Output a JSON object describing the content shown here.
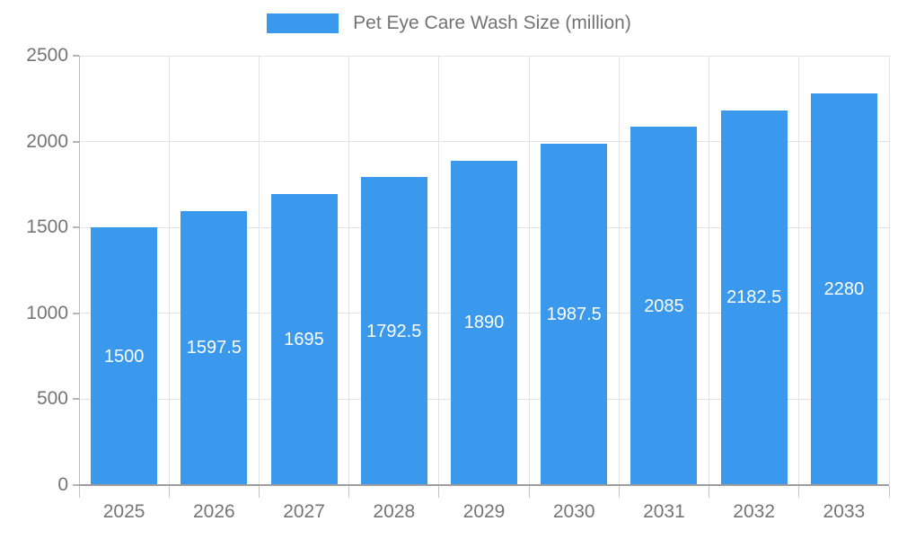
{
  "legend": {
    "label": "Pet Eye Care Wash Size (million)",
    "swatch_color": "#3a99ec"
  },
  "chart_data": {
    "type": "bar",
    "title": "",
    "xlabel": "",
    "ylabel": "",
    "categories": [
      "2025",
      "2026",
      "2027",
      "2028",
      "2029",
      "2030",
      "2031",
      "2032",
      "2033"
    ],
    "series": [
      {
        "name": "Pet Eye Care Wash Size (million)",
        "values": [
          1500,
          1597.5,
          1695,
          1792.5,
          1890,
          1987.5,
          2085,
          2182.5,
          2280
        ]
      }
    ],
    "value_labels_position": "inside-center",
    "ylim": [
      0,
      2500
    ],
    "yticks": [
      0,
      500,
      1000,
      1500,
      2000,
      2500
    ],
    "grid": true,
    "legend_position": "top",
    "bar_color": "#3a99ec",
    "value_label_color": "#ffffff",
    "tick_label_color": "#757575",
    "gridline_color": "#e3e3e3",
    "axis_line_color": "#9e9e9e"
  }
}
